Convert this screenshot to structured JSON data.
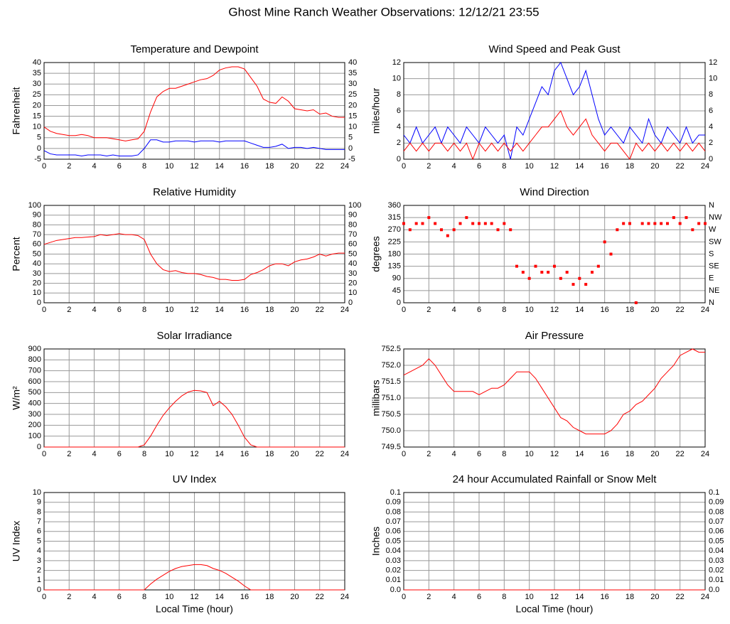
{
  "title": "Ghost Mine Ranch Weather Observations: 12/12/21 23:55",
  "chart_data": [
    {
      "type": "line",
      "title": "Temperature and Dewpoint",
      "y_label": "Fahrenheit",
      "x": [
        0,
        0.5,
        1,
        1.5,
        2,
        2.5,
        3,
        3.5,
        4,
        4.5,
        5,
        5.5,
        6,
        6.5,
        7,
        7.5,
        8,
        8.5,
        9,
        9.5,
        10,
        10.5,
        11,
        11.5,
        12,
        12.5,
        13,
        13.5,
        14,
        14.5,
        15,
        15.5,
        16,
        16.5,
        17,
        17.5,
        18,
        18.5,
        19,
        19.5,
        20,
        20.5,
        21,
        21.5,
        22,
        22.5,
        23,
        23.5,
        24
      ],
      "series": [
        {
          "color": "#ff0000",
          "values": [
            10,
            8,
            7,
            6.5,
            6,
            6,
            6.5,
            6,
            5,
            5,
            5,
            4.5,
            4,
            3.5,
            4,
            4.5,
            8,
            17,
            24,
            26.5,
            28,
            28,
            29,
            30,
            31,
            32,
            32.5,
            34,
            36.5,
            37.5,
            38,
            38,
            37,
            33,
            29,
            23,
            21.5,
            21,
            24,
            22,
            18.5,
            18,
            17.5,
            18,
            16,
            16.5,
            15,
            14.5,
            14.5
          ]
        },
        {
          "color": "#0000ff",
          "values": [
            -1,
            -2.5,
            -3,
            -3,
            -3,
            -3,
            -3.5,
            -3,
            -3,
            -3,
            -3.5,
            -3,
            -3.5,
            -3.5,
            -3.5,
            -3,
            0,
            4,
            4,
            3,
            3,
            3.5,
            3.5,
            3.5,
            3,
            3.5,
            3.5,
            3.5,
            3,
            3.5,
            3.5,
            3.5,
            3.5,
            2.5,
            1.5,
            0.5,
            0.5,
            1,
            2,
            0,
            0.5,
            0.5,
            0,
            0.5,
            0,
            -0.5,
            -0.5,
            -0.5,
            -0.5
          ]
        }
      ],
      "xlim": [
        0,
        24
      ],
      "xticks": [
        0,
        2,
        4,
        6,
        8,
        10,
        12,
        14,
        16,
        18,
        20,
        22,
        24
      ],
      "ylim": [
        -5,
        40
      ],
      "yticks": [
        -5,
        0,
        5,
        10,
        15,
        20,
        25,
        30,
        35,
        40
      ],
      "y2lim": [
        -5,
        40
      ],
      "y2ticks": [
        -5,
        0,
        5,
        10,
        15,
        20,
        25,
        30,
        35,
        40
      ],
      "grid": true
    },
    {
      "type": "line",
      "title": "Wind Speed and Peak Gust",
      "y_label": "miles/hour",
      "x": [
        0,
        0.5,
        1,
        1.5,
        2,
        2.5,
        3,
        3.5,
        4,
        4.5,
        5,
        5.5,
        6,
        6.5,
        7,
        7.5,
        8,
        8.5,
        9,
        9.5,
        10,
        10.5,
        11,
        11.5,
        12,
        12.5,
        13,
        13.5,
        14,
        14.5,
        15,
        15.5,
        16,
        16.5,
        17,
        17.5,
        18,
        18.5,
        19,
        19.5,
        20,
        20.5,
        21,
        21.5,
        22,
        22.5,
        23,
        23.5,
        24
      ],
      "series": [
        {
          "color": "#0000ff",
          "values": [
            3,
            2,
            4,
            2,
            3,
            4,
            2,
            4,
            3,
            2,
            4,
            3,
            2,
            4,
            3,
            2,
            3,
            0,
            4,
            3,
            5,
            7,
            9,
            8,
            11,
            12,
            10,
            8,
            9,
            11,
            8,
            5,
            3,
            4,
            3,
            2,
            4,
            3,
            2,
            5,
            3,
            2,
            4,
            3,
            2,
            4,
            2,
            3,
            3
          ]
        },
        {
          "color": "#ff0000",
          "values": [
            1,
            2,
            1,
            2,
            1,
            2,
            2,
            1,
            2,
            1,
            2,
            0,
            2,
            1,
            2,
            1,
            2,
            1,
            2,
            1,
            2,
            3,
            4,
            4,
            5,
            6,
            4,
            3,
            4,
            5,
            3,
            2,
            1,
            2,
            2,
            1,
            0,
            2,
            1,
            2,
            1,
            2,
            1,
            2,
            1,
            2,
            1,
            2,
            1
          ]
        }
      ],
      "xlim": [
        0,
        24
      ],
      "xticks": [
        0,
        2,
        4,
        6,
        8,
        10,
        12,
        14,
        16,
        18,
        20,
        22,
        24
      ],
      "ylim": [
        0,
        12
      ],
      "yticks": [
        0,
        2,
        4,
        6,
        8,
        10,
        12
      ],
      "y2lim": [
        0,
        12
      ],
      "y2ticks": [
        0,
        2,
        4,
        6,
        8,
        10,
        12
      ],
      "grid": true
    },
    {
      "type": "line",
      "title": "Relative Humidity",
      "y_label": "Percent",
      "x": [
        0,
        0.5,
        1,
        1.5,
        2,
        2.5,
        3,
        3.5,
        4,
        4.5,
        5,
        5.5,
        6,
        6.5,
        7,
        7.5,
        8,
        8.5,
        9,
        9.5,
        10,
        10.5,
        11,
        11.5,
        12,
        12.5,
        13,
        13.5,
        14,
        14.5,
        15,
        15.5,
        16,
        16.5,
        17,
        17.5,
        18,
        18.5,
        19,
        19.5,
        20,
        20.5,
        21,
        21.5,
        22,
        22.5,
        23,
        23.5,
        24
      ],
      "series": [
        {
          "color": "#ff0000",
          "values": [
            60,
            62,
            64,
            65,
            66,
            67,
            67,
            67.5,
            68,
            70,
            69,
            70,
            71,
            70,
            70,
            69,
            65,
            50,
            40,
            34,
            32,
            33,
            31,
            30,
            30,
            29,
            27,
            26,
            24,
            24,
            23,
            23,
            24,
            29,
            31,
            34,
            38,
            40,
            40,
            38,
            42,
            44,
            45,
            47,
            50,
            48,
            50,
            51,
            51
          ]
        }
      ],
      "xlim": [
        0,
        24
      ],
      "xticks": [
        0,
        2,
        4,
        6,
        8,
        10,
        12,
        14,
        16,
        18,
        20,
        22,
        24
      ],
      "ylim": [
        0,
        100
      ],
      "yticks": [
        0,
        10,
        20,
        30,
        40,
        50,
        60,
        70,
        80,
        90,
        100
      ],
      "y2lim": [
        0,
        100
      ],
      "y2ticks": [
        0,
        10,
        20,
        30,
        40,
        50,
        60,
        70,
        80,
        90,
        100
      ],
      "grid": true
    },
    {
      "type": "scatter",
      "title": "Wind Direction",
      "y_label": "degrees",
      "x": [
        0,
        0.5,
        1,
        1.5,
        2,
        2.5,
        3,
        3.5,
        4,
        4.5,
        5,
        5.5,
        6,
        6.5,
        7,
        7.5,
        8,
        8.5,
        9,
        9.5,
        10,
        10.5,
        11,
        11.5,
        12,
        12.5,
        13,
        13.5,
        14,
        14.5,
        15,
        15.5,
        16,
        16.5,
        17,
        17.5,
        18,
        18.5,
        19,
        19.5,
        20,
        20.5,
        21,
        21.5,
        22,
        22.5,
        23,
        23.5,
        24
      ],
      "series": [
        {
          "color": "#ff0000",
          "values": [
            293,
            270,
            293,
            293,
            315,
            293,
            270,
            248,
            270,
            293,
            315,
            293,
            293,
            293,
            293,
            270,
            293,
            270,
            135,
            113,
            90,
            135,
            113,
            113,
            135,
            90,
            113,
            68,
            90,
            68,
            113,
            135,
            225,
            180,
            270,
            293,
            293,
            0,
            293,
            293,
            293,
            293,
            293,
            315,
            293,
            315,
            270,
            293,
            293
          ]
        }
      ],
      "xlim": [
        0,
        24
      ],
      "xticks": [
        0,
        2,
        4,
        6,
        8,
        10,
        12,
        14,
        16,
        18,
        20,
        22,
        24
      ],
      "ylim": [
        0,
        360
      ],
      "yticks": [
        0,
        45,
        90,
        135,
        180,
        225,
        270,
        315,
        360
      ],
      "y2lim": [
        0,
        360
      ],
      "y2ticks": [
        {
          "value": 0,
          "label": "N"
        },
        {
          "value": 45,
          "label": "NE"
        },
        {
          "value": 90,
          "label": "E"
        },
        {
          "value": 135,
          "label": "SE"
        },
        {
          "value": 180,
          "label": "S"
        },
        {
          "value": 225,
          "label": "SW"
        },
        {
          "value": 270,
          "label": "W"
        },
        {
          "value": 315,
          "label": "NW"
        },
        {
          "value": 360,
          "label": "N"
        }
      ],
      "grid": true
    },
    {
      "type": "line",
      "title": "Solar Irradiance",
      "y_label": "W/m²",
      "x": [
        0,
        0.5,
        1,
        1.5,
        2,
        2.5,
        3,
        3.5,
        4,
        4.5,
        5,
        5.5,
        6,
        6.5,
        7,
        7.5,
        8,
        8.5,
        9,
        9.5,
        10,
        10.5,
        11,
        11.5,
        12,
        12.5,
        13,
        13.5,
        14,
        14.5,
        15,
        15.5,
        16,
        16.5,
        17,
        17.5,
        18,
        18.5,
        19,
        19.5,
        20,
        20.5,
        21,
        21.5,
        22,
        22.5,
        23,
        23.5,
        24
      ],
      "series": [
        {
          "color": "#ff0000",
          "values": [
            0,
            0,
            0,
            0,
            0,
            0,
            0,
            0,
            0,
            0,
            0,
            0,
            0,
            0,
            0,
            0,
            20,
            100,
            200,
            290,
            360,
            420,
            470,
            505,
            520,
            515,
            500,
            380,
            420,
            370,
            300,
            200,
            90,
            20,
            0,
            0,
            0,
            0,
            0,
            0,
            0,
            0,
            0,
            0,
            0,
            0,
            0,
            0,
            0
          ]
        }
      ],
      "xlim": [
        0,
        24
      ],
      "xticks": [
        0,
        2,
        4,
        6,
        8,
        10,
        12,
        14,
        16,
        18,
        20,
        22,
        24
      ],
      "ylim": [
        0,
        900
      ],
      "yticks": [
        0,
        100,
        200,
        300,
        400,
        500,
        600,
        700,
        800,
        900
      ],
      "grid": true
    },
    {
      "type": "line",
      "title": "Air Pressure",
      "y_label": "millibars",
      "x": [
        0,
        0.5,
        1,
        1.5,
        2,
        2.5,
        3,
        3.5,
        4,
        4.5,
        5,
        5.5,
        6,
        6.5,
        7,
        7.5,
        8,
        8.5,
        9,
        9.5,
        10,
        10.5,
        11,
        11.5,
        12,
        12.5,
        13,
        13.5,
        14,
        14.5,
        15,
        15.5,
        16,
        16.5,
        17,
        17.5,
        18,
        18.5,
        19,
        19.5,
        20,
        20.5,
        21,
        21.5,
        22,
        22.5,
        23,
        23.5,
        24
      ],
      "series": [
        {
          "color": "#ff0000",
          "values": [
            751.7,
            751.8,
            751.9,
            752.0,
            752.2,
            752.0,
            751.7,
            751.4,
            751.2,
            751.2,
            751.2,
            751.2,
            751.1,
            751.2,
            751.3,
            751.3,
            751.4,
            751.6,
            751.8,
            751.8,
            751.8,
            751.6,
            751.3,
            751.0,
            750.7,
            750.4,
            750.3,
            750.1,
            750.0,
            749.9,
            749.9,
            749.9,
            749.9,
            750.0,
            750.2,
            750.5,
            750.6,
            750.8,
            750.9,
            751.1,
            751.3,
            751.6,
            751.8,
            752.0,
            752.3,
            752.4,
            752.5,
            752.4,
            752.4
          ]
        }
      ],
      "xlim": [
        0,
        24
      ],
      "xticks": [
        0,
        2,
        4,
        6,
        8,
        10,
        12,
        14,
        16,
        18,
        20,
        22,
        24
      ],
      "ylim": [
        749.5,
        752.5
      ],
      "yticks": [
        749.5,
        {
          "value": 750,
          "label": "750.0"
        },
        750.5,
        {
          "value": 751,
          "label": "751.0"
        },
        751.5,
        {
          "value": 752,
          "label": "752.0"
        },
        752.5
      ],
      "grid": true
    },
    {
      "type": "line",
      "title": "UV Index",
      "y_label": "UV Index",
      "x_label": "Local Time (hour)",
      "x": [
        0,
        0.5,
        1,
        1.5,
        2,
        2.5,
        3,
        3.5,
        4,
        4.5,
        5,
        5.5,
        6,
        6.5,
        7,
        7.5,
        8,
        8.5,
        9,
        9.5,
        10,
        10.5,
        11,
        11.5,
        12,
        12.5,
        13,
        13.5,
        14,
        14.5,
        15,
        15.5,
        16,
        16.5,
        17,
        17.5,
        18,
        18.5,
        19,
        19.5,
        20,
        20.5,
        21,
        21.5,
        22,
        22.5,
        23,
        23.5,
        24
      ],
      "series": [
        {
          "color": "#ff0000",
          "values": [
            0,
            0,
            0,
            0,
            0,
            0,
            0,
            0,
            0,
            0,
            0,
            0,
            0,
            0,
            0,
            0,
            0,
            0.6,
            1.1,
            1.5,
            1.9,
            2.2,
            2.4,
            2.5,
            2.6,
            2.6,
            2.5,
            2.2,
            2.0,
            1.7,
            1.3,
            0.9,
            0.4,
            0,
            0,
            0,
            0,
            0,
            0,
            0,
            0,
            0,
            0,
            0,
            0,
            0,
            0,
            0,
            0
          ]
        }
      ],
      "xlim": [
        0,
        24
      ],
      "xticks": [
        0,
        2,
        4,
        6,
        8,
        10,
        12,
        14,
        16,
        18,
        20,
        22,
        24
      ],
      "ylim": [
        0,
        10
      ],
      "yticks": [
        0,
        1,
        2,
        3,
        4,
        5,
        6,
        7,
        8,
        9,
        10
      ],
      "grid": true
    },
    {
      "type": "line",
      "title": "24 hour Accumulated Rainfall or Snow Melt",
      "y_label": "Inches",
      "x_label": "Local Time (hour)",
      "x": [
        0,
        24
      ],
      "series": [
        {
          "color": "#ff0000",
          "values": [
            0,
            0
          ]
        }
      ],
      "xlim": [
        0,
        24
      ],
      "xticks": [
        0,
        2,
        4,
        6,
        8,
        10,
        12,
        14,
        16,
        18,
        20,
        22,
        24
      ],
      "ylim": [
        0,
        0.1
      ],
      "yticks": [
        {
          "value": 0,
          "label": "0.0"
        },
        0.01,
        0.02,
        0.03,
        0.04,
        0.05,
        0.06,
        0.07,
        0.08,
        0.09,
        0.1
      ],
      "y2lim": [
        0,
        0.1
      ],
      "y2ticks": [
        {
          "value": 0,
          "label": "0.0"
        },
        0.01,
        0.02,
        0.03,
        0.04,
        0.05,
        0.06,
        0.07,
        0.08,
        0.09,
        0.1
      ],
      "grid": true
    }
  ]
}
